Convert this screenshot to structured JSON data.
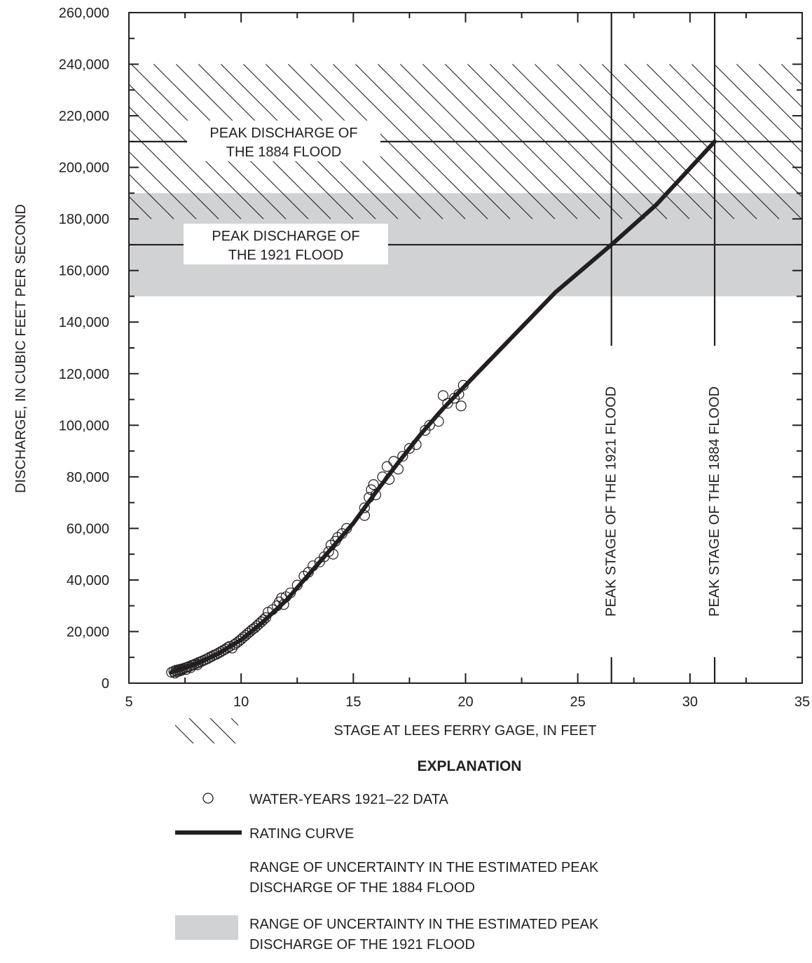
{
  "chart_data": {
    "type": "scatter",
    "xlabel": "STAGE AT LEES FERRY GAGE, IN FEET",
    "ylabel": "DISCHARGE, IN CUBIC FEET PER SECOND",
    "xlim": [
      5,
      35
    ],
    "ylim": [
      0,
      260000
    ],
    "x_ticks": [
      "5",
      "10",
      "15",
      "20",
      "25",
      "30",
      "35"
    ],
    "y_ticks": [
      "0",
      "20,000",
      "40,000",
      "60,000",
      "80,000",
      "100,000",
      "120,000",
      "140,000",
      "160,000",
      "180,000",
      "200,000",
      "220,000",
      "240,000",
      "260,000"
    ],
    "x_tick_values": [
      5,
      10,
      15,
      20,
      25,
      30,
      35
    ],
    "y_tick_values": [
      0,
      20000,
      40000,
      60000,
      80000,
      100000,
      120000,
      140000,
      160000,
      180000,
      200000,
      220000,
      240000,
      260000
    ],
    "grid": false,
    "bands": [
      {
        "label": "RANGE OF UNCERTAINTY IN THE ESTIMATED PEAK DISCHARGE OF THE 1884 FLOOD",
        "y_range": [
          180000,
          240000
        ],
        "fill": "hatched"
      },
      {
        "label": "RANGE OF UNCERTAINTY IN THE ESTIMATED PEAK DISCHARGE OF THE 1921 FLOOD",
        "y_range": [
          150000,
          190000
        ],
        "fill": "#d1d2d4"
      }
    ],
    "hlines": [
      {
        "y": 210000,
        "label": [
          "PEAK DISCHARGE OF",
          "THE 1884 FLOOD"
        ]
      },
      {
        "y": 170000,
        "label": [
          "PEAK DISCHARGE OF",
          "THE 1921 FLOOD"
        ]
      }
    ],
    "vlines": [
      {
        "x": 26.5,
        "label": "PEAK STAGE OF THE 1921 FLOOD"
      },
      {
        "x": 31.1,
        "label": "PEAK STAGE OF THE 1884 FLOOD"
      }
    ],
    "series": [
      {
        "name": "WATER-YEARS 1921–22 DATA",
        "kind": "scatter",
        "points": [
          [
            6.9,
            4200
          ],
          [
            7.0,
            4600
          ],
          [
            7.05,
            3900
          ],
          [
            7.1,
            5000
          ],
          [
            7.15,
            4400
          ],
          [
            7.2,
            5200
          ],
          [
            7.25,
            4700
          ],
          [
            7.3,
            5400
          ],
          [
            7.35,
            5000
          ],
          [
            7.4,
            5600
          ],
          [
            7.5,
            5900
          ],
          [
            7.55,
            5300
          ],
          [
            7.6,
            6200
          ],
          [
            7.7,
            6500
          ],
          [
            7.75,
            6000
          ],
          [
            7.8,
            6900
          ],
          [
            7.9,
            7200
          ],
          [
            8.0,
            7600
          ],
          [
            8.05,
            7100
          ],
          [
            8.1,
            8000
          ],
          [
            8.2,
            8300
          ],
          [
            8.3,
            8700
          ],
          [
            8.4,
            9100
          ],
          [
            8.5,
            9500
          ],
          [
            8.6,
            10000
          ],
          [
            8.7,
            10400
          ],
          [
            8.8,
            10900
          ],
          [
            8.9,
            11200
          ],
          [
            9.0,
            11700
          ],
          [
            9.1,
            12200
          ],
          [
            9.2,
            12700
          ],
          [
            9.3,
            13200
          ],
          [
            9.4,
            13800
          ],
          [
            9.5,
            14300
          ],
          [
            9.6,
            13600
          ],
          [
            9.7,
            15000
          ],
          [
            9.8,
            15600
          ],
          [
            9.9,
            16300
          ],
          [
            10.0,
            17000
          ],
          [
            10.1,
            17800
          ],
          [
            10.2,
            18500
          ],
          [
            10.3,
            19300
          ],
          [
            10.4,
            20000
          ],
          [
            10.5,
            20800
          ],
          [
            10.6,
            21400
          ],
          [
            10.7,
            22200
          ],
          [
            10.8,
            23000
          ],
          [
            10.9,
            23800
          ],
          [
            11.0,
            24600
          ],
          [
            11.1,
            25400
          ],
          [
            11.2,
            27500
          ],
          [
            11.4,
            28500
          ],
          [
            11.6,
            30000
          ],
          [
            11.7,
            31500
          ],
          [
            11.8,
            33000
          ],
          [
            11.9,
            30500
          ],
          [
            12.0,
            33500
          ],
          [
            12.2,
            35000
          ],
          [
            12.5,
            38000
          ],
          [
            12.8,
            41500
          ],
          [
            13.0,
            43000
          ],
          [
            13.2,
            45500
          ],
          [
            13.5,
            47000
          ],
          [
            13.7,
            49000
          ],
          [
            13.9,
            51000
          ],
          [
            14.0,
            53500
          ],
          [
            14.1,
            50000
          ],
          [
            14.2,
            55000
          ],
          [
            14.3,
            56500
          ],
          [
            14.5,
            58000
          ],
          [
            14.7,
            60000
          ],
          [
            15.5,
            65000
          ],
          [
            15.5,
            68000
          ],
          [
            15.7,
            72000
          ],
          [
            15.8,
            75000
          ],
          [
            15.9,
            77000
          ],
          [
            16.0,
            73000
          ],
          [
            16.3,
            80000
          ],
          [
            16.5,
            84000
          ],
          [
            16.6,
            79000
          ],
          [
            16.8,
            86000
          ],
          [
            17.0,
            83000
          ],
          [
            17.2,
            88000
          ],
          [
            17.5,
            91000
          ],
          [
            17.8,
            92500
          ],
          [
            18.2,
            98000
          ],
          [
            18.4,
            100000
          ],
          [
            18.8,
            101500
          ],
          [
            19.0,
            111500
          ],
          [
            19.2,
            108500
          ],
          [
            19.5,
            110500
          ],
          [
            19.7,
            112000
          ],
          [
            19.8,
            107500
          ],
          [
            19.9,
            115500
          ]
        ]
      },
      {
        "name": "RATING CURVE",
        "kind": "line",
        "points": [
          [
            6.9,
            4200
          ],
          [
            8.0,
            7500
          ],
          [
            9.0,
            11500
          ],
          [
            10.0,
            16800
          ],
          [
            11.0,
            24000
          ],
          [
            12.0,
            32000
          ],
          [
            13.0,
            42000
          ],
          [
            14.0,
            52000
          ],
          [
            15.0,
            62000
          ],
          [
            16.0,
            74000
          ],
          [
            17.0,
            85500
          ],
          [
            18.0,
            96500
          ],
          [
            19.0,
            106500
          ],
          [
            20.0,
            115500
          ],
          [
            22.0,
            133500
          ],
          [
            24.0,
            151500
          ],
          [
            26.5,
            170000
          ],
          [
            28.5,
            185500
          ],
          [
            31.1,
            210000
          ]
        ]
      }
    ]
  },
  "explanation": {
    "title": "EXPLANATION",
    "items": [
      {
        "text": "WATER-YEARS 1921–22 DATA"
      },
      {
        "text": "RATING CURVE"
      },
      {
        "text": [
          "RANGE OF UNCERTAINTY IN THE ESTIMATED PEAK",
          "DISCHARGE OF THE 1884 FLOOD"
        ]
      },
      {
        "text": [
          "RANGE OF UNCERTAINTY IN THE ESTIMATED PEAK",
          "DISCHARGE OF THE 1921 FLOOD"
        ]
      }
    ]
  },
  "colors": {
    "ink": "#231f20",
    "gray_band": "#d1d2d4"
  }
}
